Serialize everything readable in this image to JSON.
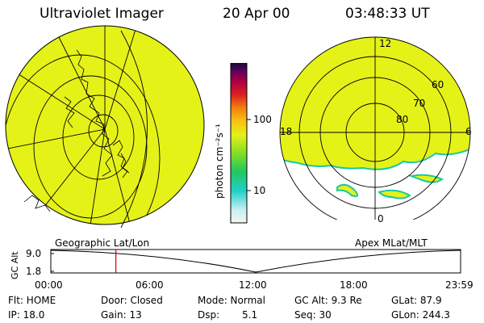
{
  "header": {
    "instrument": "Ultraviolet Imager",
    "date": "20 Apr 00",
    "time": "03:48:33 UT"
  },
  "colorbar": {
    "unit_label": "photon cm⁻²s⁻¹",
    "ticks": [
      "100",
      "10"
    ],
    "scale": "log"
  },
  "left_map": {
    "label": "Geographic Lat/Lon"
  },
  "right_map": {
    "label": "Apex MLat/MLT",
    "mlt_labels": [
      "12",
      "18",
      "6",
      "0"
    ],
    "mlat_labels": [
      "60",
      "70",
      "80"
    ]
  },
  "timeline": {
    "y_label": "GC Alt",
    "y_ticks": [
      "9.0",
      "1.8"
    ],
    "x_ticks": [
      "00:00",
      "06:00",
      "12:00",
      "18:00",
      "23:59"
    ],
    "current_time_hours": 3.81
  },
  "status": {
    "flt": "Flt: HOME",
    "ip": "IP: 18.0",
    "door": "Door: Closed",
    "gain": "Gain: 13",
    "mode": "Mode: Normal",
    "dsp": "Dsp:",
    "dsp_value": "5.1",
    "gc_alt": "GC Alt: 9.3 Re",
    "seq": "Seq: 30",
    "glat": "GLat: 87.9",
    "glon": "GLon: 244.3"
  },
  "colors": {
    "emission": "#e4f218",
    "aurora_edge": "#19c8a8",
    "time_marker": "#cc0000"
  }
}
